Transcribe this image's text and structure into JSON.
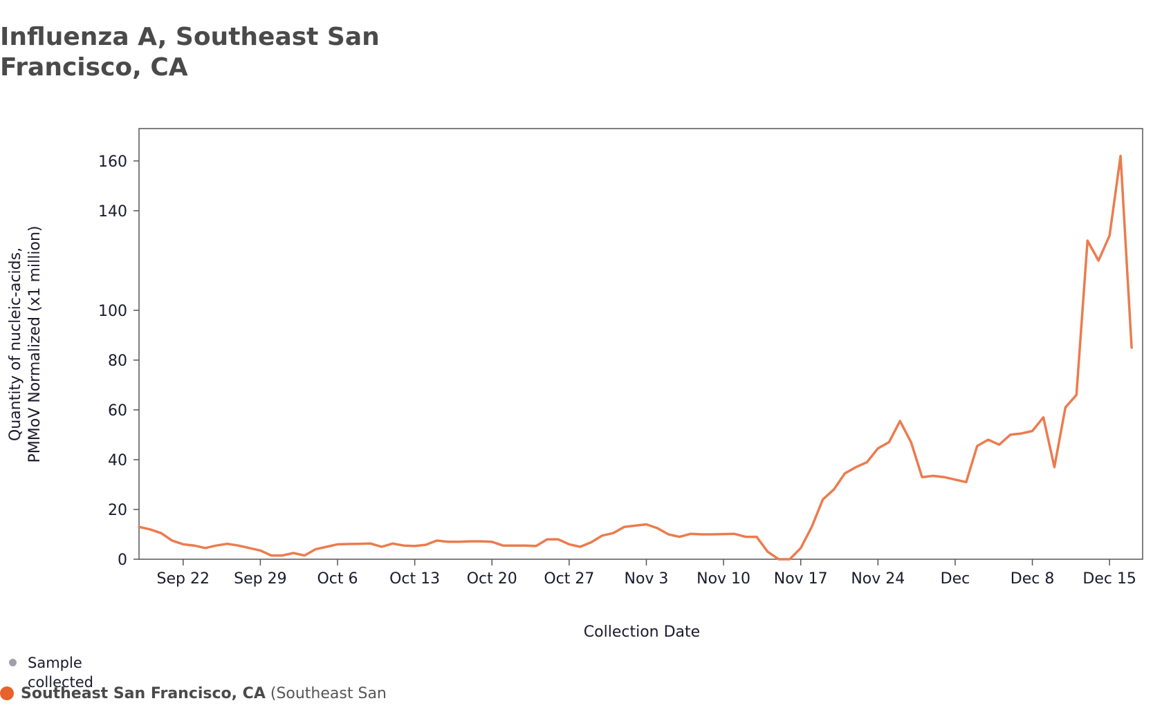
{
  "chart_data": {
    "type": "line",
    "title": "Influenza A, Southeast San Francisco, CA",
    "xlabel": "Collection Date",
    "ylabel_line1": "Quantity of nucleic-acids,",
    "ylabel_line2": "PMMoV Normalized (x1 million)",
    "ylim": [
      0,
      173
    ],
    "yticks": [
      "0",
      "20",
      "40",
      "60",
      "80",
      "100",
      "140",
      "160"
    ],
    "ytick_values": [
      0,
      20,
      40,
      60,
      80,
      100,
      140,
      160
    ],
    "xlim_days": [
      0,
      91
    ],
    "xticks": [
      {
        "label": "Sep 22",
        "day": 4
      },
      {
        "label": "Sep 29",
        "day": 11
      },
      {
        "label": "Oct 6",
        "day": 18
      },
      {
        "label": "Oct 13",
        "day": 25
      },
      {
        "label": "Oct 20",
        "day": 32
      },
      {
        "label": "Oct 27",
        "day": 39
      },
      {
        "label": "Nov 3",
        "day": 46
      },
      {
        "label": "Nov 10",
        "day": 53
      },
      {
        "label": "Nov 17",
        "day": 60
      },
      {
        "label": "Nov 24",
        "day": 67
      },
      {
        "label": "Dec",
        "day": 74
      },
      {
        "label": "Dec 8",
        "day": 81
      },
      {
        "label": "Dec 15",
        "day": 88
      }
    ],
    "series": [
      {
        "name": "Southeast San Francisco, CA",
        "color": "#e8622c",
        "line_color": "#ec7b4e",
        "days": [
          0,
          1,
          2,
          3,
          4,
          5,
          6,
          7,
          8,
          9,
          10,
          11,
          12,
          13,
          14,
          15,
          16,
          17,
          18,
          19,
          20,
          21,
          22,
          23,
          24,
          25,
          26,
          27,
          28,
          29,
          30,
          31,
          32,
          33,
          34,
          35,
          36,
          37,
          38,
          39,
          40,
          41,
          42,
          43,
          44,
          45,
          46,
          47,
          48,
          49,
          50,
          51,
          52,
          53,
          54,
          55,
          56,
          57,
          58,
          59,
          60,
          61,
          62,
          63,
          64,
          65,
          66,
          67,
          68,
          69,
          70,
          71,
          72,
          73,
          74,
          75,
          76,
          77,
          78,
          79,
          80,
          81,
          82,
          83,
          84,
          85,
          86,
          87,
          88,
          89,
          90
        ],
        "values": [
          13,
          12,
          10.5,
          7.5,
          6,
          5.5,
          4.5,
          5.5,
          6.2,
          5.5,
          4.5,
          3.5,
          1.5,
          1.5,
          2.5,
          1.5,
          4,
          5,
          6,
          6.1,
          6.2,
          6.3,
          5,
          6.3,
          5.5,
          5.3,
          5.8,
          7.5,
          7,
          7,
          7.2,
          7.2,
          7,
          5.5,
          5.5,
          5.5,
          5.3,
          8,
          8,
          6,
          5,
          6.8,
          9.5,
          10.5,
          13,
          13.5,
          14,
          12.5,
          10,
          9,
          10.2,
          10,
          10,
          10.1,
          10.2,
          9,
          9,
          3,
          0,
          0,
          4.5,
          13,
          24,
          28,
          34.5,
          37,
          39,
          44.5,
          47,
          55.5,
          47,
          33,
          33.5,
          33,
          32,
          31,
          45.5,
          48,
          46,
          50,
          50.5,
          51.5,
          57,
          37,
          61,
          66,
          128,
          120,
          130,
          162,
          85
        ]
      }
    ],
    "legend": [
      {
        "label": "Sample collected",
        "color": "#a0a0ac"
      },
      {
        "label": "Southeast San Francisco, CA",
        "sublabel": "(Southeast San",
        "color": "#e8622c"
      }
    ]
  }
}
